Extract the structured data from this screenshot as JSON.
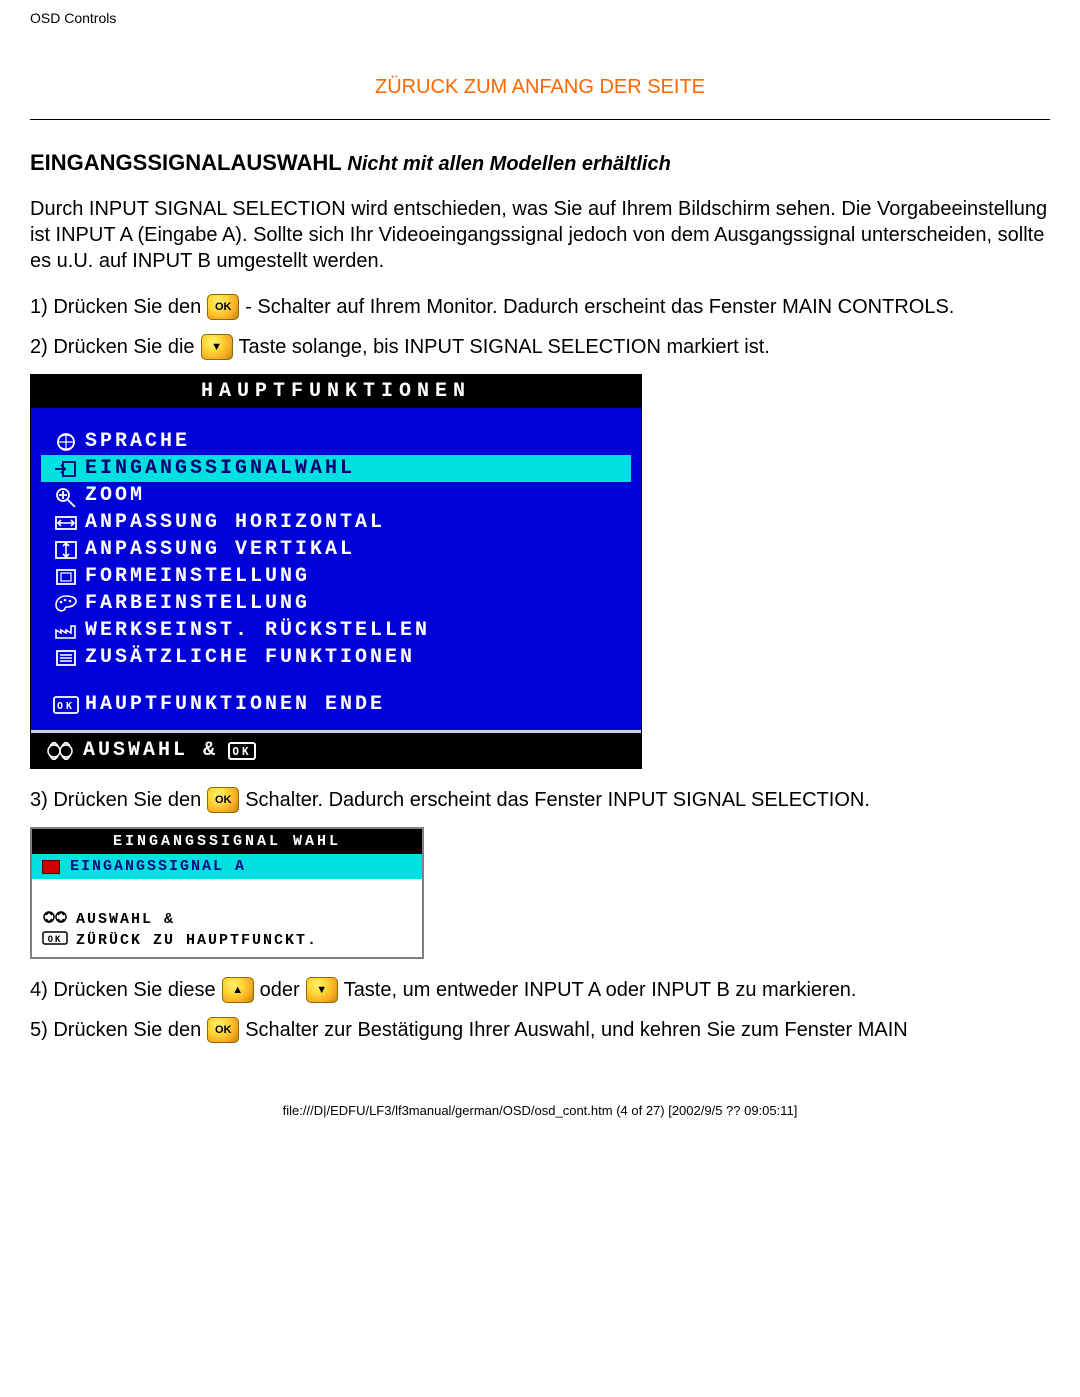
{
  "header": {
    "title": "OSD Controls"
  },
  "topLink": {
    "label": "ZÜRUCK ZUM ANFANG DER SEITE"
  },
  "section": {
    "heading": "EINGANGSSIGNALAUSWAHL",
    "subheading": "Nicht mit allen Modellen erhältlich",
    "intro": "Durch INPUT SIGNAL SELECTION wird entschieden, was Sie auf Ihrem Bildschirm sehen. Die Vorgabeeinstellung ist INPUT A (Eingabe A). Sollte sich Ihr Videoeingangssignal jedoch von dem Ausgangssignal unterscheiden, sollte es u.U. auf INPUT B umgestellt werden."
  },
  "steps": {
    "s1a": "1) Drücken Sie den",
    "s1b": "- Schalter auf Ihrem Monitor. Dadurch erscheint das Fenster MAIN CONTROLS.",
    "s2a": "2) Drücken Sie die",
    "s2b": "Taste solange, bis INPUT SIGNAL SELECTION markiert ist.",
    "s3a": "3) Drücken Sie den",
    "s3b": "Schalter. Dadurch erscheint das Fenster INPUT SIGNAL SELECTION.",
    "s4a": "4) Drücken Sie diese",
    "s4mid": "oder",
    "s4b": "Taste, um entweder INPUT A oder INPUT B zu markieren.",
    "s5a": "5) Drücken Sie den",
    "s5b": "Schalter zur Bestätigung Ihrer Auswahl, und kehren Sie zum Fenster MAIN"
  },
  "osdMain": {
    "title": "HAUPTFUNKTIONEN",
    "colors": {
      "bg": "#0000d8",
      "highlight": "#00e0e0",
      "text": "#ffffff",
      "titleBg": "#000000"
    },
    "items": [
      {
        "icon": "globe",
        "label": "SPRACHE",
        "selected": false
      },
      {
        "icon": "input",
        "label": "EINGANGSSIGNALWAHL",
        "selected": true
      },
      {
        "icon": "zoom",
        "label": "ZOOM",
        "selected": false
      },
      {
        "icon": "harrow",
        "label": "ANPASSUNG HORIZONTAL",
        "selected": false
      },
      {
        "icon": "varrow",
        "label": "ANPASSUNG VERTIKAL",
        "selected": false
      },
      {
        "icon": "shape",
        "label": "FORMEINSTELLUNG",
        "selected": false
      },
      {
        "icon": "palette",
        "label": "FARBEINSTELLUNG",
        "selected": false
      },
      {
        "icon": "factory",
        "label": "WERKSEINST. RÜCKSTELLEN",
        "selected": false
      },
      {
        "icon": "list",
        "label": "ZUSÄTZLICHE FUNKTIONEN",
        "selected": false
      }
    ],
    "exit": {
      "icon": "ok",
      "label": "HAUPTFUNKTIONEN ENDE"
    },
    "footer": {
      "iconA": "updown",
      "label": "AUSWAHL &",
      "iconB": "ok"
    }
  },
  "osdInput": {
    "title": "EINGANGSSIGNAL WAHL",
    "row": {
      "label": "EINGANGSSIGNAL A"
    },
    "footer": {
      "line1": {
        "icon": "updown",
        "label": "AUSWAHL &"
      },
      "line2": {
        "icon": "ok",
        "label": "ZÜRÜCK ZU HAUPTFUNCKT."
      }
    }
  },
  "pageFooter": "file:///D|/EDFU/LF3/lf3manual/german/OSD/osd_cont.htm (4 of 27) [2002/9/5 ?? 09:05:11]",
  "buttonIcons": {
    "ok": "OK",
    "down": "▼",
    "up": "▲"
  }
}
